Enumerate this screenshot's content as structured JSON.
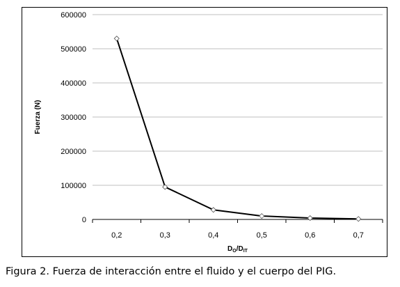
{
  "chart_data": {
    "type": "line",
    "x": [
      "0,2",
      "0,3",
      "0,4",
      "0,5",
      "0,6",
      "0,7"
    ],
    "values": [
      530000,
      95000,
      28000,
      10000,
      4000,
      1500
    ],
    "ylabel": "Fuerza (N)",
    "xlabel": {
      "main": "D",
      "sub1": "O",
      "sep": "/D",
      "sub2": "IT"
    },
    "ylim": [
      0,
      600000
    ],
    "y_ticks": [
      "600000",
      "500000",
      "400000",
      "300000",
      "200000",
      "100000",
      "0"
    ],
    "grid": "horizontal",
    "legend": "none",
    "line_color": "#000000",
    "grid_color": "#bfbfbf"
  },
  "caption": "Figura 2.  Fuerza de interacción entre el fluido y el cuerpo del PIG."
}
